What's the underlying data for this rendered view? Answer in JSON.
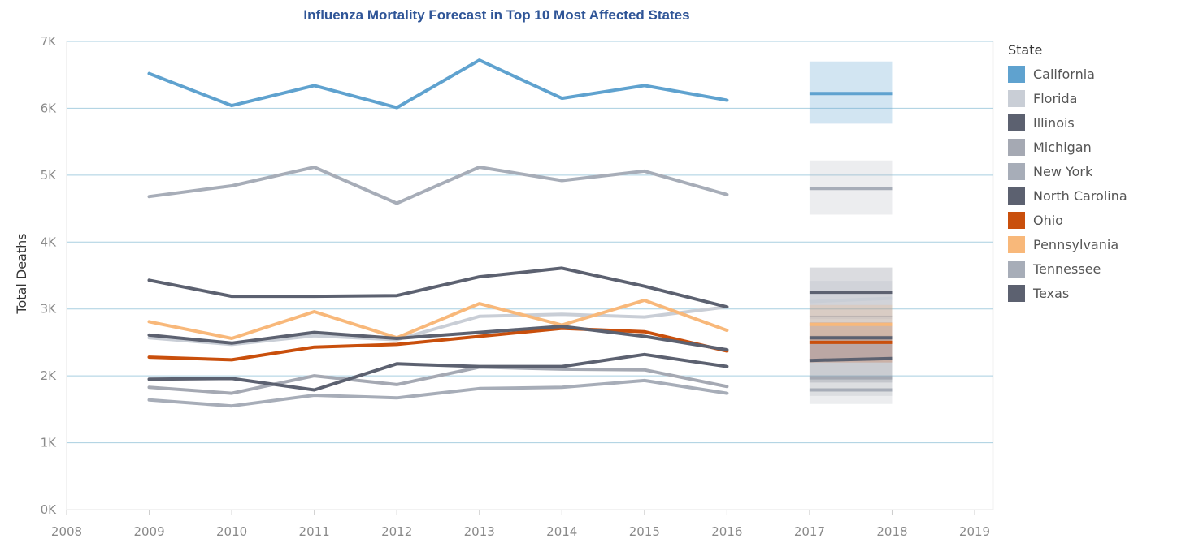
{
  "chart_data": {
    "type": "line",
    "title": "Influenza Mortality Forecast in Top 10 Most Affected States",
    "xlabel": "",
    "ylabel": "Total Deaths",
    "x_ticks": [
      "2008",
      "2009",
      "2010",
      "2011",
      "2012",
      "2013",
      "2014",
      "2015",
      "2016",
      "2017",
      "2018",
      "2019"
    ],
    "xlim": [
      2008,
      2019
    ],
    "y_ticks": [
      "0K",
      "1K",
      "2K",
      "3K",
      "4K",
      "5K",
      "6K",
      "7K"
    ],
    "ylim": [
      0,
      7000
    ],
    "grid": "horizontal",
    "legend_title": "State",
    "legend_position": "right",
    "series": [
      {
        "name": "California",
        "color": "#5fa2cf",
        "x": [
          2009,
          2010,
          2011,
          2012,
          2013,
          2014,
          2015,
          2016
        ],
        "values": [
          6520,
          6040,
          6340,
          6010,
          6720,
          6150,
          6340,
          6120
        ],
        "forecast": {
          "x": [
            2017,
            2018
          ],
          "values": [
            6220,
            6220
          ],
          "band": [
            5770,
            6700
          ]
        }
      },
      {
        "name": "Florida",
        "color": "#c9ced6",
        "x": [
          2009,
          2010,
          2011,
          2012,
          2013,
          2014,
          2015,
          2016
        ],
        "values": [
          2570,
          2470,
          2600,
          2540,
          2890,
          2920,
          2880,
          3030
        ],
        "forecast": {
          "x": [
            2017,
            2018
          ],
          "values": [
            3110,
            3160
          ],
          "band": [
            2850,
            3420
          ]
        }
      },
      {
        "name": "Illinois",
        "color": "#5c6170",
        "x": [
          2009,
          2010,
          2011,
          2012,
          2013,
          2014,
          2015,
          2016
        ],
        "values": [
          3430,
          3190,
          3190,
          3200,
          3480,
          3610,
          3340,
          3030
        ],
        "forecast": {
          "x": [
            2017,
            2018
          ],
          "values": [
            3250,
            3250
          ],
          "band": [
            2880,
            3620
          ]
        }
      },
      {
        "name": "Michigan",
        "color": "#a5a9b3",
        "x": [
          2009,
          2010,
          2011,
          2012,
          2013,
          2014,
          2015,
          2016
        ],
        "values": [
          1830,
          1740,
          2000,
          1870,
          2130,
          2100,
          2090,
          1840
        ],
        "forecast": {
          "x": [
            2017,
            2018
          ],
          "values": [
            1970,
            1970
          ],
          "band": [
            1700,
            2250
          ]
        }
      },
      {
        "name": "New York",
        "color": "#a7adb8",
        "x": [
          2009,
          2010,
          2011,
          2012,
          2013,
          2014,
          2015,
          2016
        ],
        "values": [
          4680,
          4840,
          5120,
          4580,
          5120,
          4920,
          5060,
          4710
        ],
        "forecast": {
          "x": [
            2017,
            2018
          ],
          "values": [
            4800,
            4800
          ],
          "band": [
            4410,
            5220
          ]
        }
      },
      {
        "name": "North Carolina",
        "color": "#5c6170",
        "x": [
          2009,
          2010,
          2011,
          2012,
          2013,
          2014,
          2015,
          2016
        ],
        "values": [
          1950,
          1960,
          1790,
          2180,
          2140,
          2140,
          2320,
          2140
        ],
        "forecast": {
          "x": [
            2017,
            2018
          ],
          "values": [
            2230,
            2260
          ],
          "band": [
            1900,
            2600
          ]
        }
      },
      {
        "name": "Ohio",
        "color": "#c94f0c",
        "x": [
          2009,
          2010,
          2011,
          2012,
          2013,
          2014,
          2015,
          2016
        ],
        "values": [
          2280,
          2240,
          2430,
          2470,
          2590,
          2710,
          2660,
          2370
        ],
        "forecast": {
          "x": [
            2017,
            2018
          ],
          "values": [
            2500,
            2500
          ],
          "band": [
            2200,
            2800
          ]
        }
      },
      {
        "name": "Pennsylvania",
        "color": "#f8b87a",
        "x": [
          2009,
          2010,
          2011,
          2012,
          2013,
          2014,
          2015,
          2016
        ],
        "values": [
          2810,
          2560,
          2960,
          2570,
          3080,
          2760,
          3130,
          2680
        ],
        "forecast": {
          "x": [
            2017,
            2018
          ],
          "values": [
            2770,
            2770
          ],
          "band": [
            2480,
            3060
          ]
        }
      },
      {
        "name": "Tennessee",
        "color": "#a7adb8",
        "x": [
          2009,
          2010,
          2011,
          2012,
          2013,
          2014,
          2015,
          2016
        ],
        "values": [
          1640,
          1550,
          1710,
          1670,
          1810,
          1830,
          1930,
          1740
        ],
        "forecast": {
          "x": [
            2017,
            2018
          ],
          "values": [
            1790,
            1790
          ],
          "band": [
            1580,
            2000
          ]
        }
      },
      {
        "name": "Texas",
        "color": "#5c6170",
        "x": [
          2009,
          2010,
          2011,
          2012,
          2013,
          2014,
          2015,
          2016
        ],
        "values": [
          2610,
          2490,
          2650,
          2560,
          2650,
          2740,
          2590,
          2390
        ],
        "forecast": {
          "x": [
            2017,
            2018
          ],
          "values": [
            2570,
            2570
          ],
          "band": [
            2250,
            2900
          ]
        }
      }
    ]
  }
}
